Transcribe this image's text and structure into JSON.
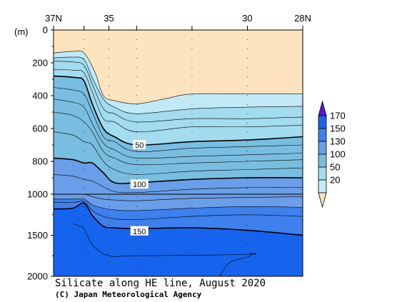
{
  "chart_data": {
    "type": "heatmap",
    "title": "Silicate along HE line, August 2020",
    "credit": "(C) Japan Meteorological Agency",
    "x_ticks": [
      {
        "label": "37N",
        "lat": 37
      },
      {
        "label": "35",
        "lat": 35
      },
      {
        "label": "30",
        "lat": 30
      },
      {
        "label": "28N",
        "lat": 28
      }
    ],
    "xlim": [
      37,
      28
    ],
    "y_unit": "(m)",
    "y_ticks_upper": [
      0,
      200,
      400,
      600,
      800,
      1000
    ],
    "y_ticks_lower": [
      1500,
      2000
    ],
    "ylim_upper": [
      0,
      1000
    ],
    "ylim_lower": [
      1000,
      2000
    ],
    "station_lats": [
      37,
      35.9,
      35,
      34,
      32,
      30,
      28
    ],
    "colorbar": {
      "labels": [
        "170",
        "150",
        "130",
        "100",
        "50",
        "20"
      ],
      "colors": [
        "#5a18d4",
        "#1664ee",
        "#3d80ee",
        "#6a9ee8",
        "#79bee0",
        "#a2dcee",
        "#c2eaf6",
        "#fde4bf"
      ]
    },
    "contour_labels": [
      {
        "text": "50",
        "lat": 33.9,
        "depth": 700
      },
      {
        "text": "100",
        "lat": 33.9,
        "depth": 940
      },
      {
        "text": "150",
        "lat": 33.9,
        "depth": 1450
      }
    ],
    "contours": [
      {
        "value": 20,
        "points": [
          [
            37,
            140
          ],
          [
            36.3,
            130
          ],
          [
            35.9,
            140
          ],
          [
            35.5,
            260
          ],
          [
            35.2,
            400
          ],
          [
            34.8,
            430
          ],
          [
            34,
            450
          ],
          [
            33,
            420
          ],
          [
            32,
            390
          ],
          [
            30,
            390
          ],
          [
            28,
            390
          ]
        ]
      },
      {
        "value": 25,
        "points": [
          [
            37,
            170
          ],
          [
            36.3,
            165
          ],
          [
            35.9,
            180
          ],
          [
            35.6,
            290
          ],
          [
            35.2,
            420
          ],
          [
            34.8,
            470
          ],
          [
            34,
            510
          ],
          [
            32,
            480
          ],
          [
            30,
            470
          ],
          [
            28,
            465
          ]
        ]
      },
      {
        "value": 30,
        "points": [
          [
            37,
            190
          ],
          [
            36.3,
            195
          ],
          [
            35.9,
            215
          ],
          [
            35.6,
            330
          ],
          [
            35.2,
            480
          ],
          [
            34.8,
            510
          ],
          [
            34,
            560
          ],
          [
            32,
            540
          ],
          [
            30,
            540
          ],
          [
            28,
            530
          ]
        ]
      },
      {
        "value": 40,
        "points": [
          [
            37,
            240
          ],
          [
            36.3,
            245
          ],
          [
            35.9,
            260
          ],
          [
            35.6,
            380
          ],
          [
            35.2,
            540
          ],
          [
            34.8,
            560
          ],
          [
            34,
            620
          ],
          [
            32,
            590
          ],
          [
            30,
            590
          ],
          [
            28,
            580
          ]
        ]
      },
      {
        "value": 50,
        "thick": true,
        "points": [
          [
            37,
            280
          ],
          [
            36.2,
            290
          ],
          [
            35.9,
            310
          ],
          [
            35.6,
            450
          ],
          [
            35.2,
            600
          ],
          [
            34.8,
            650
          ],
          [
            34,
            700
          ],
          [
            32,
            680
          ],
          [
            30,
            670
          ],
          [
            28,
            650
          ]
        ]
      },
      {
        "value": 60,
        "points": [
          [
            37,
            350
          ],
          [
            36.3,
            365
          ],
          [
            35.9,
            390
          ],
          [
            35.6,
            500
          ],
          [
            35.2,
            650
          ],
          [
            34.8,
            680
          ],
          [
            34,
            740
          ],
          [
            32,
            720
          ],
          [
            30,
            710
          ],
          [
            28,
            700
          ]
        ]
      },
      {
        "value": 70,
        "points": [
          [
            37,
            420
          ],
          [
            36.3,
            440
          ],
          [
            35.9,
            470
          ],
          [
            35.6,
            570
          ],
          [
            35.2,
            690
          ],
          [
            34.8,
            730
          ],
          [
            34,
            780
          ],
          [
            32,
            770
          ],
          [
            30,
            760
          ],
          [
            28,
            750
          ]
        ]
      },
      {
        "value": 80,
        "points": [
          [
            37,
            500
          ],
          [
            36.3,
            520
          ],
          [
            35.9,
            560
          ],
          [
            35.6,
            620
          ],
          [
            35.2,
            740
          ],
          [
            34.8,
            780
          ],
          [
            34,
            820
          ],
          [
            32,
            810
          ],
          [
            30,
            800
          ],
          [
            28,
            790
          ]
        ]
      },
      {
        "value": 90,
        "points": [
          [
            37,
            620
          ],
          [
            36.3,
            640
          ],
          [
            35.9,
            680
          ],
          [
            35.6,
            700
          ],
          [
            35.2,
            800
          ],
          [
            34.8,
            850
          ],
          [
            34,
            880
          ],
          [
            32,
            860
          ],
          [
            30,
            850
          ],
          [
            28,
            840
          ]
        ]
      },
      {
        "value": 100,
        "thick": true,
        "points": [
          [
            37,
            780
          ],
          [
            36.3,
            790
          ],
          [
            35.9,
            810
          ],
          [
            35.6,
            810
          ],
          [
            35.2,
            870
          ],
          [
            34.8,
            930
          ],
          [
            34,
            930
          ],
          [
            32,
            910
          ],
          [
            30,
            900
          ],
          [
            28,
            900
          ]
        ]
      },
      {
        "value": 110,
        "points": [
          [
            37,
            880
          ],
          [
            36.3,
            890
          ],
          [
            35.9,
            910
          ],
          [
            35.6,
            920
          ],
          [
            35.2,
            955
          ],
          [
            34.8,
            985
          ],
          [
            34,
            990
          ],
          [
            32,
            970
          ],
          [
            30,
            960
          ],
          [
            28,
            960
          ]
        ]
      },
      {
        "value": 120,
        "points": [
          [
            37,
            1000
          ],
          [
            36.3,
            1000
          ],
          [
            35.9,
            1000
          ],
          [
            35.6,
            1030
          ],
          [
            35.2,
            1060
          ],
          [
            34.8,
            1070
          ],
          [
            34,
            1080
          ],
          [
            32,
            1050
          ],
          [
            30,
            1040
          ],
          [
            28,
            1030
          ]
        ]
      },
      {
        "value": 130,
        "points": [
          [
            37,
            1060
          ],
          [
            36.3,
            1060
          ],
          [
            35.9,
            1060
          ],
          [
            35.6,
            1130
          ],
          [
            35.2,
            1170
          ],
          [
            34.8,
            1190
          ],
          [
            34,
            1200
          ],
          [
            32,
            1170
          ],
          [
            30,
            1150
          ],
          [
            28,
            1160
          ]
        ]
      },
      {
        "value": 140,
        "points": [
          [
            37,
            1100
          ],
          [
            36.3,
            1100
          ],
          [
            35.9,
            1090
          ],
          [
            35.6,
            1200
          ],
          [
            35.2,
            1270
          ],
          [
            34.8,
            1300
          ],
          [
            34,
            1310
          ],
          [
            32,
            1270
          ],
          [
            30,
            1250
          ],
          [
            28,
            1270
          ]
        ]
      },
      {
        "value": 150,
        "thick": true,
        "points": [
          [
            37,
            1180
          ],
          [
            36.3,
            1170
          ],
          [
            35.9,
            1110
          ],
          [
            35.6,
            1260
          ],
          [
            35.2,
            1390
          ],
          [
            34.8,
            1410
          ],
          [
            34,
            1420
          ],
          [
            32,
            1410
          ],
          [
            30,
            1440
          ],
          [
            28,
            1500
          ]
        ]
      }
    ],
    "contour_160": [
      [
        36.3,
        1360
      ],
      [
        35.9,
        1420
      ],
      [
        35.6,
        1620
      ],
      [
        35,
        1750
      ],
      [
        34,
        1750
      ],
      [
        30,
        1735
      ],
      [
        29.9,
        1720
      ],
      [
        29.95,
        1760
      ],
      [
        30.4,
        1800
      ],
      [
        30.7,
        1850
      ],
      [
        31,
        2000
      ]
    ]
  }
}
